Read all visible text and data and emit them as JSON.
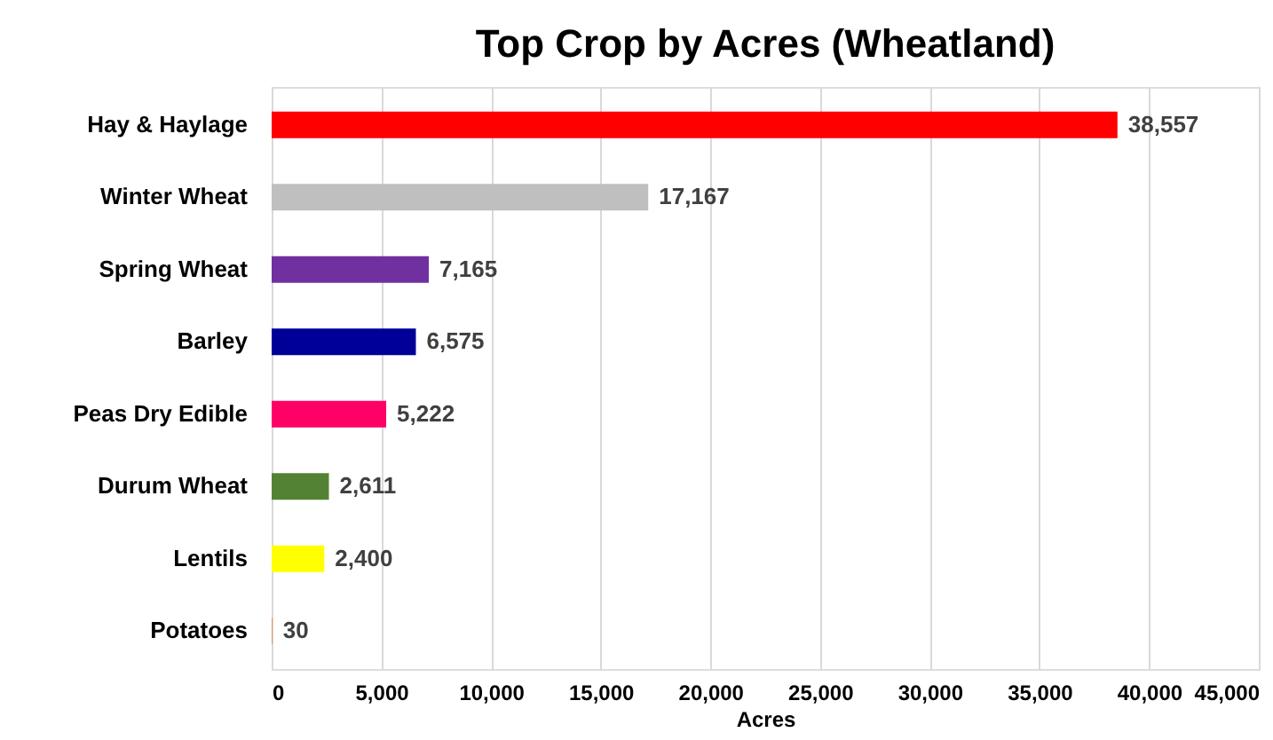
{
  "chart_data": {
    "type": "bar",
    "orientation": "horizontal",
    "title": "Top Crop by Acres (Wheatland)",
    "xlabel": "Acres",
    "categories": [
      "Hay & Haylage",
      "Winter Wheat",
      "Spring Wheat",
      "Barley",
      "Peas Dry Edible",
      "Durum Wheat",
      "Lentils",
      "Potatoes"
    ],
    "values": [
      38557,
      17167,
      7165,
      6575,
      5222,
      2611,
      2400,
      30
    ],
    "value_labels": [
      "38,557",
      "17,167",
      "7,165",
      "6,575",
      "5,222",
      "2,611",
      "2,400",
      "30"
    ],
    "colors": [
      "#ff0000",
      "#bfbfbf",
      "#7030a0",
      "#000099",
      "#ff0066",
      "#548235",
      "#ffff00",
      "#ed7d31"
    ],
    "xlim": [
      0,
      45000
    ],
    "xticks": [
      0,
      {
        "value": 5000,
        "label": "5,000"
      },
      {
        "value": 10000,
        "label": "10,000"
      },
      {
        "value": 15000,
        "label": "15,000"
      },
      {
        "value": 20000,
        "label": "20,000"
      },
      {
        "value": 25000,
        "label": "25,000"
      },
      {
        "value": 30000,
        "label": "30,000"
      },
      {
        "value": 35000,
        "label": "35,000"
      },
      {
        "value": 40000,
        "label": "40,000"
      },
      {
        "value": 45000,
        "label": "45,000"
      }
    ],
    "grid": "x",
    "legend": false
  }
}
